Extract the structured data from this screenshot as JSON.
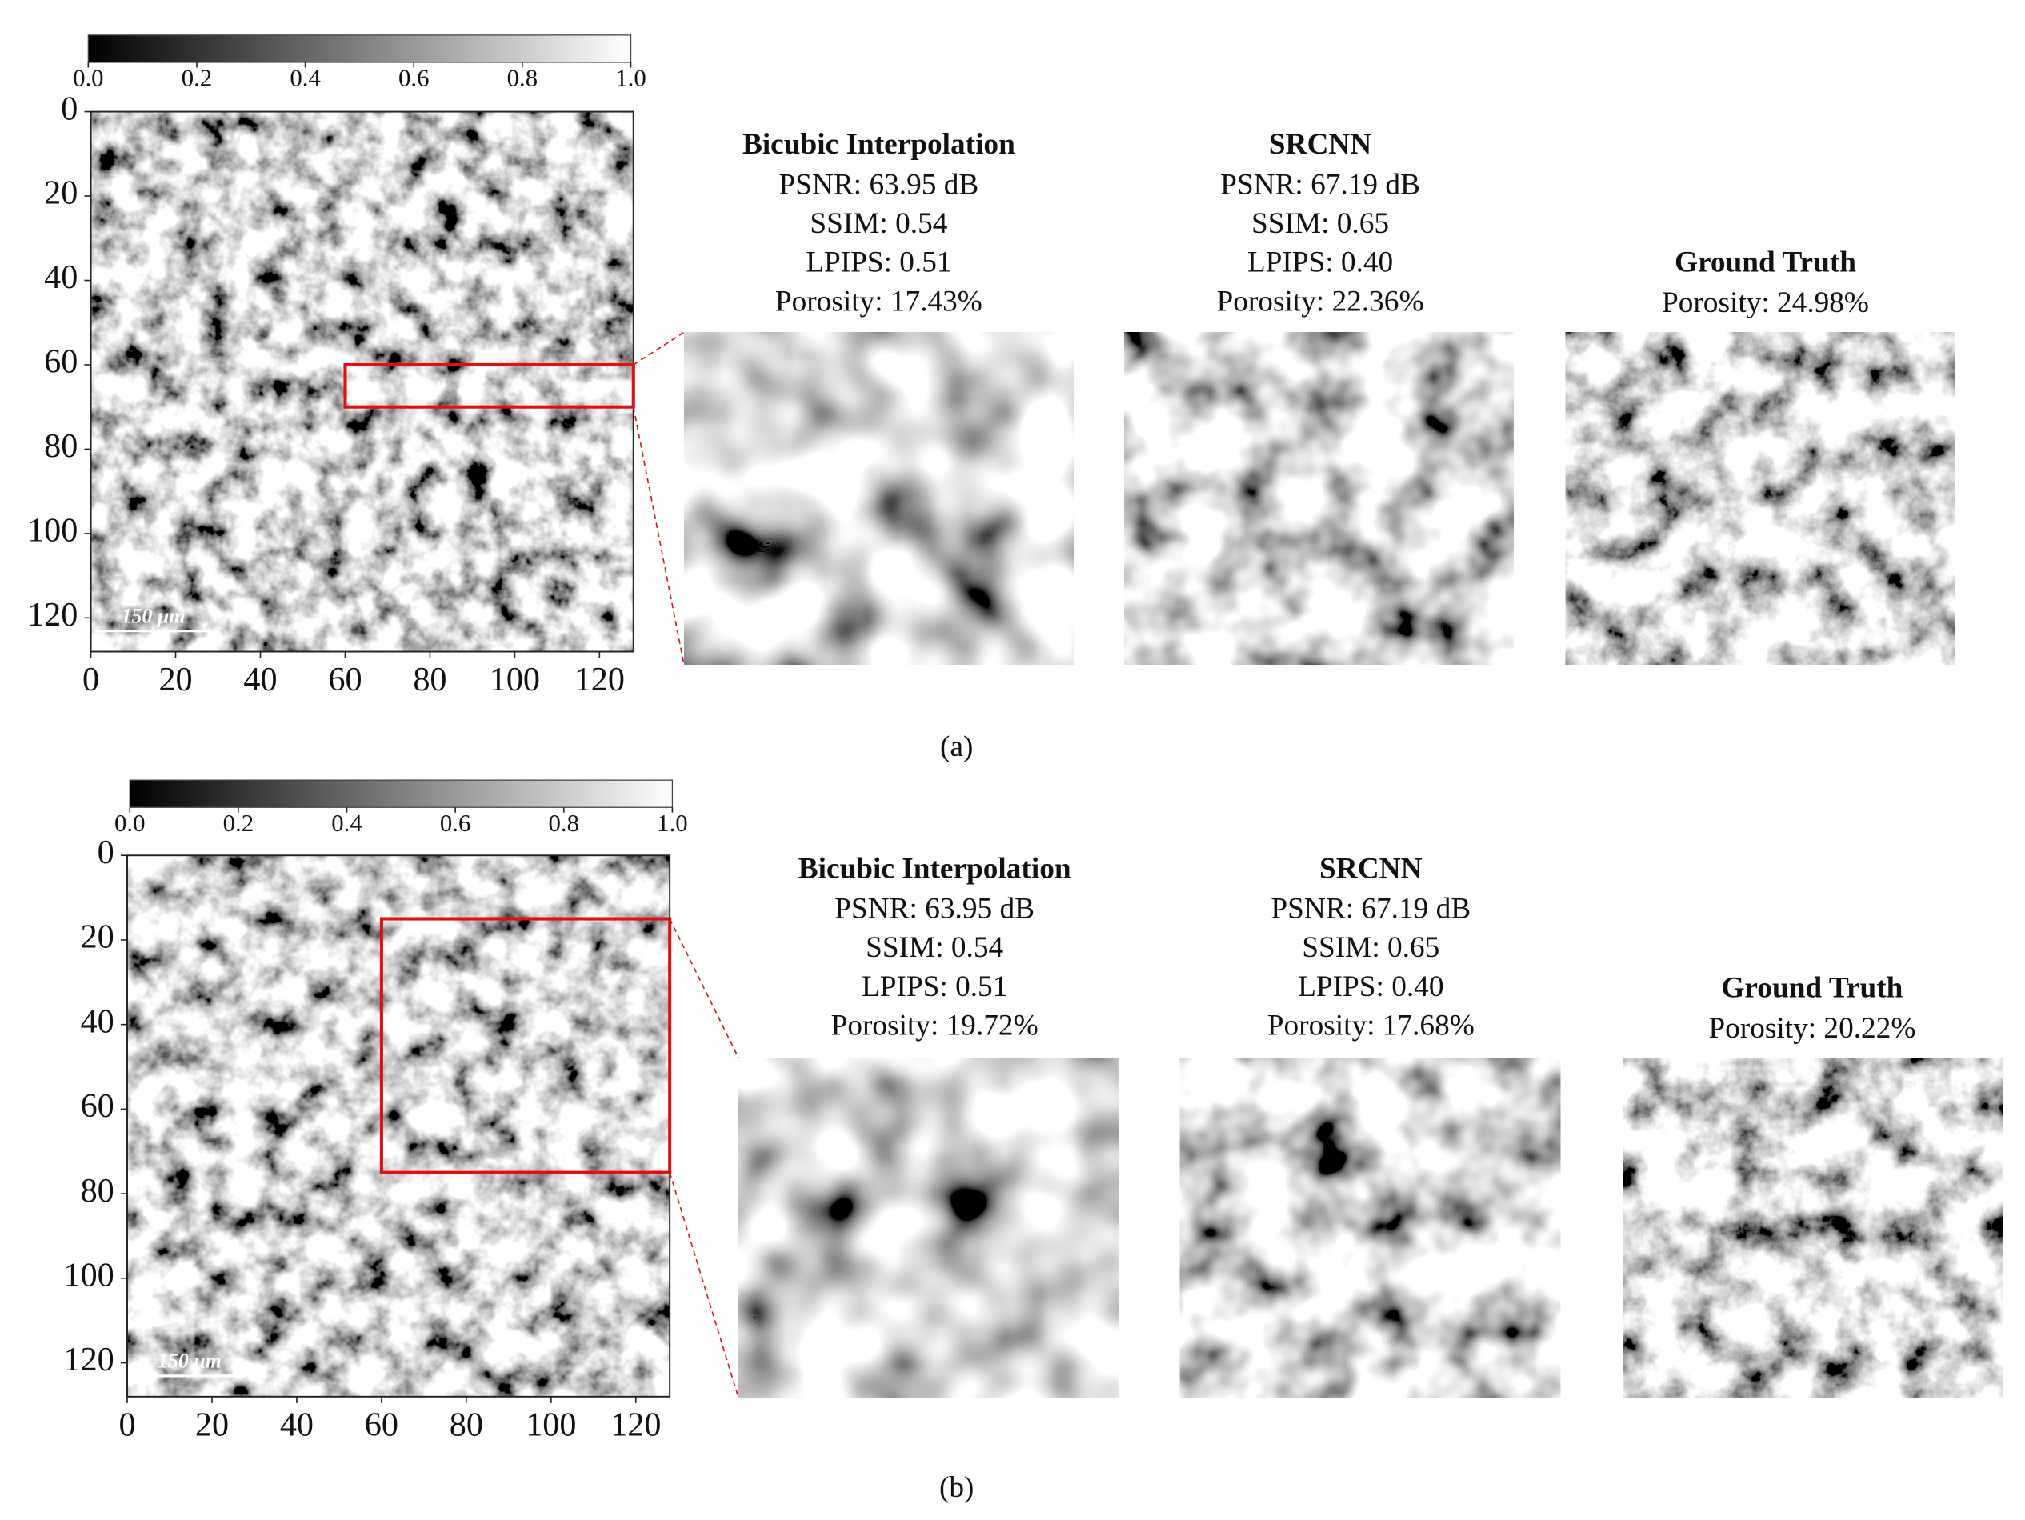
{
  "panels": [
    {
      "colorbar_ticks": [
        "0.0",
        "0.2",
        "0.4",
        "0.6",
        "0.8",
        "1.0"
      ],
      "y_ticks": [
        "0",
        "20",
        "40",
        "60",
        "80",
        "100",
        "120"
      ],
      "x_ticks": [
        "0",
        "20",
        "40",
        "60",
        "80",
        "100",
        "120"
      ],
      "scale_bar": "150 μm",
      "zooms": [
        {
          "title": "Bicubic Interpolation",
          "metrics": [
            "PSNR: 63.95 dB",
            "SSIM: 0.54",
            "LPIPS: 0.51",
            "Porosity: 17.43%"
          ]
        },
        {
          "title": "SRCNN",
          "metrics": [
            "PSNR: 67.19 dB",
            "SSIM: 0.65",
            "LPIPS: 0.40",
            "Porosity: 22.36%"
          ]
        },
        {
          "title": "Ground Truth",
          "metrics": [
            "Porosity: 24.98%"
          ]
        }
      ],
      "caption": "(a)"
    },
    {
      "colorbar_ticks": [
        "0.0",
        "0.2",
        "0.4",
        "0.6",
        "0.8",
        "1.0"
      ],
      "y_ticks": [
        "0",
        "20",
        "40",
        "60",
        "80",
        "100",
        "120"
      ],
      "x_ticks": [
        "0",
        "20",
        "40",
        "60",
        "80",
        "100",
        "120"
      ],
      "scale_bar": "150 μm",
      "zooms": [
        {
          "title": "Bicubic Interpolation",
          "metrics": [
            "PSNR: 63.95 dB",
            "SSIM: 0.54",
            "LPIPS: 0.51",
            "Porosity: 19.72%"
          ]
        },
        {
          "title": "SRCNN",
          "metrics": [
            "PSNR: 67.19 dB",
            "SSIM: 0.65",
            "LPIPS: 0.40",
            "Porosity: 17.68%"
          ]
        },
        {
          "title": "Ground Truth",
          "metrics": [
            "Porosity: 20.22%"
          ]
        }
      ],
      "caption": "(b)"
    }
  ]
}
